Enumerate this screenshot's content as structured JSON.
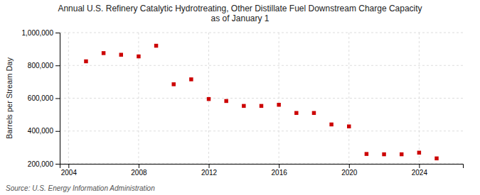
{
  "chart_data": {
    "type": "scatter",
    "title": "Annual U.S. Refinery Catalytic Hydrotreating, Other Distillate Fuel Downstream Charge Capacity\nas of January 1",
    "ylabel": "Barrels per Stream Day",
    "annotations": [
      "Source: U.S. Energy Information Administration"
    ],
    "x": [
      2005,
      2006,
      2007,
      2008,
      2009,
      2010,
      2011,
      2012,
      2013,
      2014,
      2015,
      2016,
      2017,
      2018,
      2019,
      2020,
      2021,
      2022,
      2023,
      2024,
      2025
    ],
    "values": [
      825000,
      875000,
      865000,
      855000,
      920000,
      685000,
      715000,
      595000,
      583000,
      553000,
      553000,
      560000,
      510000,
      510000,
      440000,
      428000,
      260000,
      258000,
      258000,
      268000,
      233000
    ],
    "color": "#cc0000",
    "marker": "square",
    "xlim": [
      2003.5,
      2026.5
    ],
    "ylim": [
      200000,
      1000000
    ],
    "xticks": [
      2004,
      2008,
      2012,
      2016,
      2020,
      2024
    ],
    "yticks": [
      {
        "value": 200000,
        "label": "200,000"
      },
      {
        "value": 400000,
        "label": "400,000"
      },
      {
        "value": 600000,
        "label": "600,000"
      },
      {
        "value": 800000,
        "label": "800,000"
      },
      {
        "value": 1000000,
        "label": "1,000,000"
      }
    ],
    "grid": true
  }
}
